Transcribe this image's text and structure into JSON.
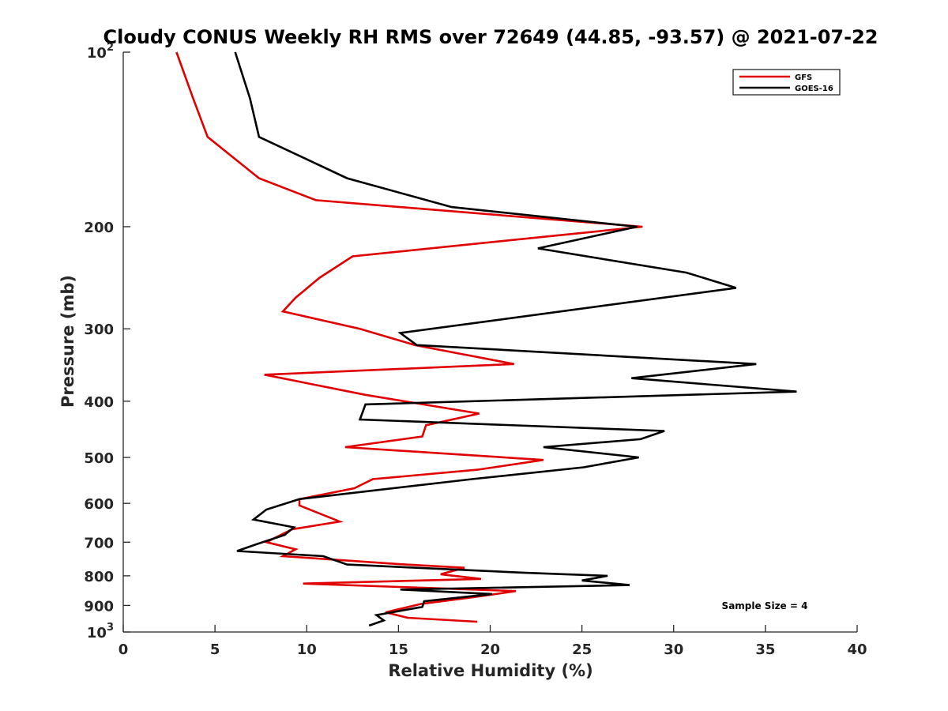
{
  "chart_data": {
    "type": "line",
    "title": "Cloudy CONUS Weekly RH RMS over 72649 (44.85, -93.57) @ 2021-07-22",
    "xlabel": "Relative Humidity (%)",
    "ylabel": "Pressure (mb)",
    "xlim": [
      0,
      40
    ],
    "ylim": [
      100,
      1000
    ],
    "yscale": "log",
    "y_reversed": true,
    "grid": false,
    "legend_position": "top-right",
    "x_ticks": [
      0,
      5,
      10,
      15,
      20,
      25,
      30,
      35,
      40
    ],
    "y_ticks": [
      {
        "value": 100,
        "base": "10",
        "exp": "2"
      },
      {
        "value": 200,
        "label": "200"
      },
      {
        "value": 300,
        "label": "300"
      },
      {
        "value": 400,
        "label": "400"
      },
      {
        "value": 500,
        "label": "500"
      },
      {
        "value": 600,
        "label": "600"
      },
      {
        "value": 700,
        "label": "700"
      },
      {
        "value": 800,
        "label": "800"
      },
      {
        "value": 900,
        "label": "900"
      },
      {
        "value": 1000,
        "base": "10",
        "exp": "3"
      }
    ],
    "annotation": "Sample Size = 4",
    "series": [
      {
        "name": "GFS",
        "color": "#e00000",
        "points": [
          [
            2.9,
            100
          ],
          [
            3.8,
            120
          ],
          [
            4.6,
            140
          ],
          [
            7.4,
            165
          ],
          [
            10.5,
            180
          ],
          [
            28.3,
            200
          ],
          [
            12.5,
            225
          ],
          [
            10.7,
            245
          ],
          [
            9.4,
            265
          ],
          [
            8.7,
            280
          ],
          [
            12.9,
            300
          ],
          [
            15.9,
            320
          ],
          [
            18.1,
            330
          ],
          [
            21.3,
            345
          ],
          [
            7.7,
            360
          ],
          [
            13.2,
            390
          ],
          [
            19.4,
            420
          ],
          [
            16.5,
            440
          ],
          [
            16.3,
            460
          ],
          [
            12.1,
            480
          ],
          [
            22.9,
            505
          ],
          [
            19.3,
            525
          ],
          [
            13.6,
            545
          ],
          [
            12.6,
            565
          ],
          [
            9.6,
            590
          ],
          [
            9.6,
            605
          ],
          [
            11.8,
            645
          ],
          [
            9.2,
            665
          ],
          [
            7.8,
            700
          ],
          [
            9.4,
            720
          ],
          [
            8.7,
            740
          ],
          [
            15.4,
            765
          ],
          [
            18.6,
            775
          ],
          [
            17.3,
            795
          ],
          [
            19.5,
            810
          ],
          [
            9.8,
            825
          ],
          [
            21.4,
            850
          ],
          [
            19.2,
            870
          ],
          [
            16.2,
            895
          ],
          [
            14.3,
            925
          ],
          [
            15.5,
            945
          ],
          [
            19.3,
            960
          ]
        ]
      },
      {
        "name": "GOES-16",
        "color": "#000000",
        "points": [
          [
            6.1,
            100
          ],
          [
            6.9,
            120
          ],
          [
            7.4,
            140
          ],
          [
            12.2,
            165
          ],
          [
            17.9,
            185
          ],
          [
            28.0,
            200
          ],
          [
            22.6,
            218
          ],
          [
            30.7,
            240
          ],
          [
            33.4,
            255
          ],
          [
            15.1,
            305
          ],
          [
            16.0,
            320
          ],
          [
            34.5,
            345
          ],
          [
            27.7,
            365
          ],
          [
            36.7,
            385
          ],
          [
            13.2,
            405
          ],
          [
            12.9,
            430
          ],
          [
            29.5,
            450
          ],
          [
            28.2,
            465
          ],
          [
            22.9,
            480
          ],
          [
            28.1,
            500
          ],
          [
            25.1,
            520
          ],
          [
            19.0,
            545
          ],
          [
            9.6,
            590
          ],
          [
            7.8,
            615
          ],
          [
            7.1,
            640
          ],
          [
            9.3,
            660
          ],
          [
            8.8,
            680
          ],
          [
            7.3,
            705
          ],
          [
            6.2,
            725
          ],
          [
            10.9,
            740
          ],
          [
            12.2,
            765
          ],
          [
            21.8,
            790
          ],
          [
            26.4,
            800
          ],
          [
            25.0,
            815
          ],
          [
            27.6,
            830
          ],
          [
            15.1,
            845
          ],
          [
            20.1,
            860
          ],
          [
            16.4,
            885
          ],
          [
            16.3,
            905
          ],
          [
            13.8,
            935
          ],
          [
            14.2,
            955
          ],
          [
            13.4,
            975
          ]
        ]
      }
    ]
  }
}
